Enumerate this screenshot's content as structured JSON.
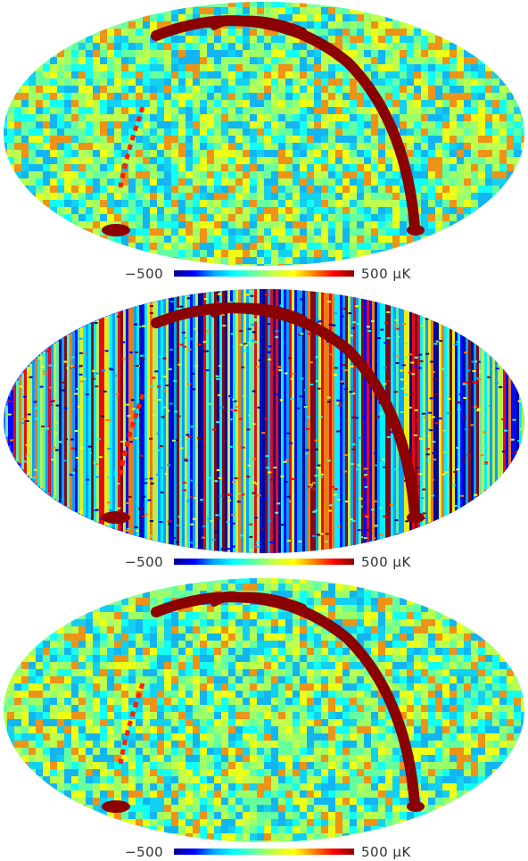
{
  "colors": {
    "colormap": [
      "#00008b",
      "#0000ff",
      "#00a8ff",
      "#00ffff",
      "#60ffa0",
      "#c8ff40",
      "#ffff00",
      "#ff8000",
      "#ff0000",
      "#8b0000"
    ],
    "background": "#ffffff",
    "foreground_band": "#8b0000"
  },
  "maps": [
    {
      "colorbar": {
        "min_label": "−500",
        "max_label": "500  μK"
      },
      "style": "smooth"
    },
    {
      "colorbar": {
        "min_label": "−500",
        "max_label": "500  μK"
      },
      "style": "striped"
    },
    {
      "colorbar": {
        "min_label": "−500",
        "max_label": "500  μK"
      },
      "style": "smooth"
    }
  ]
}
